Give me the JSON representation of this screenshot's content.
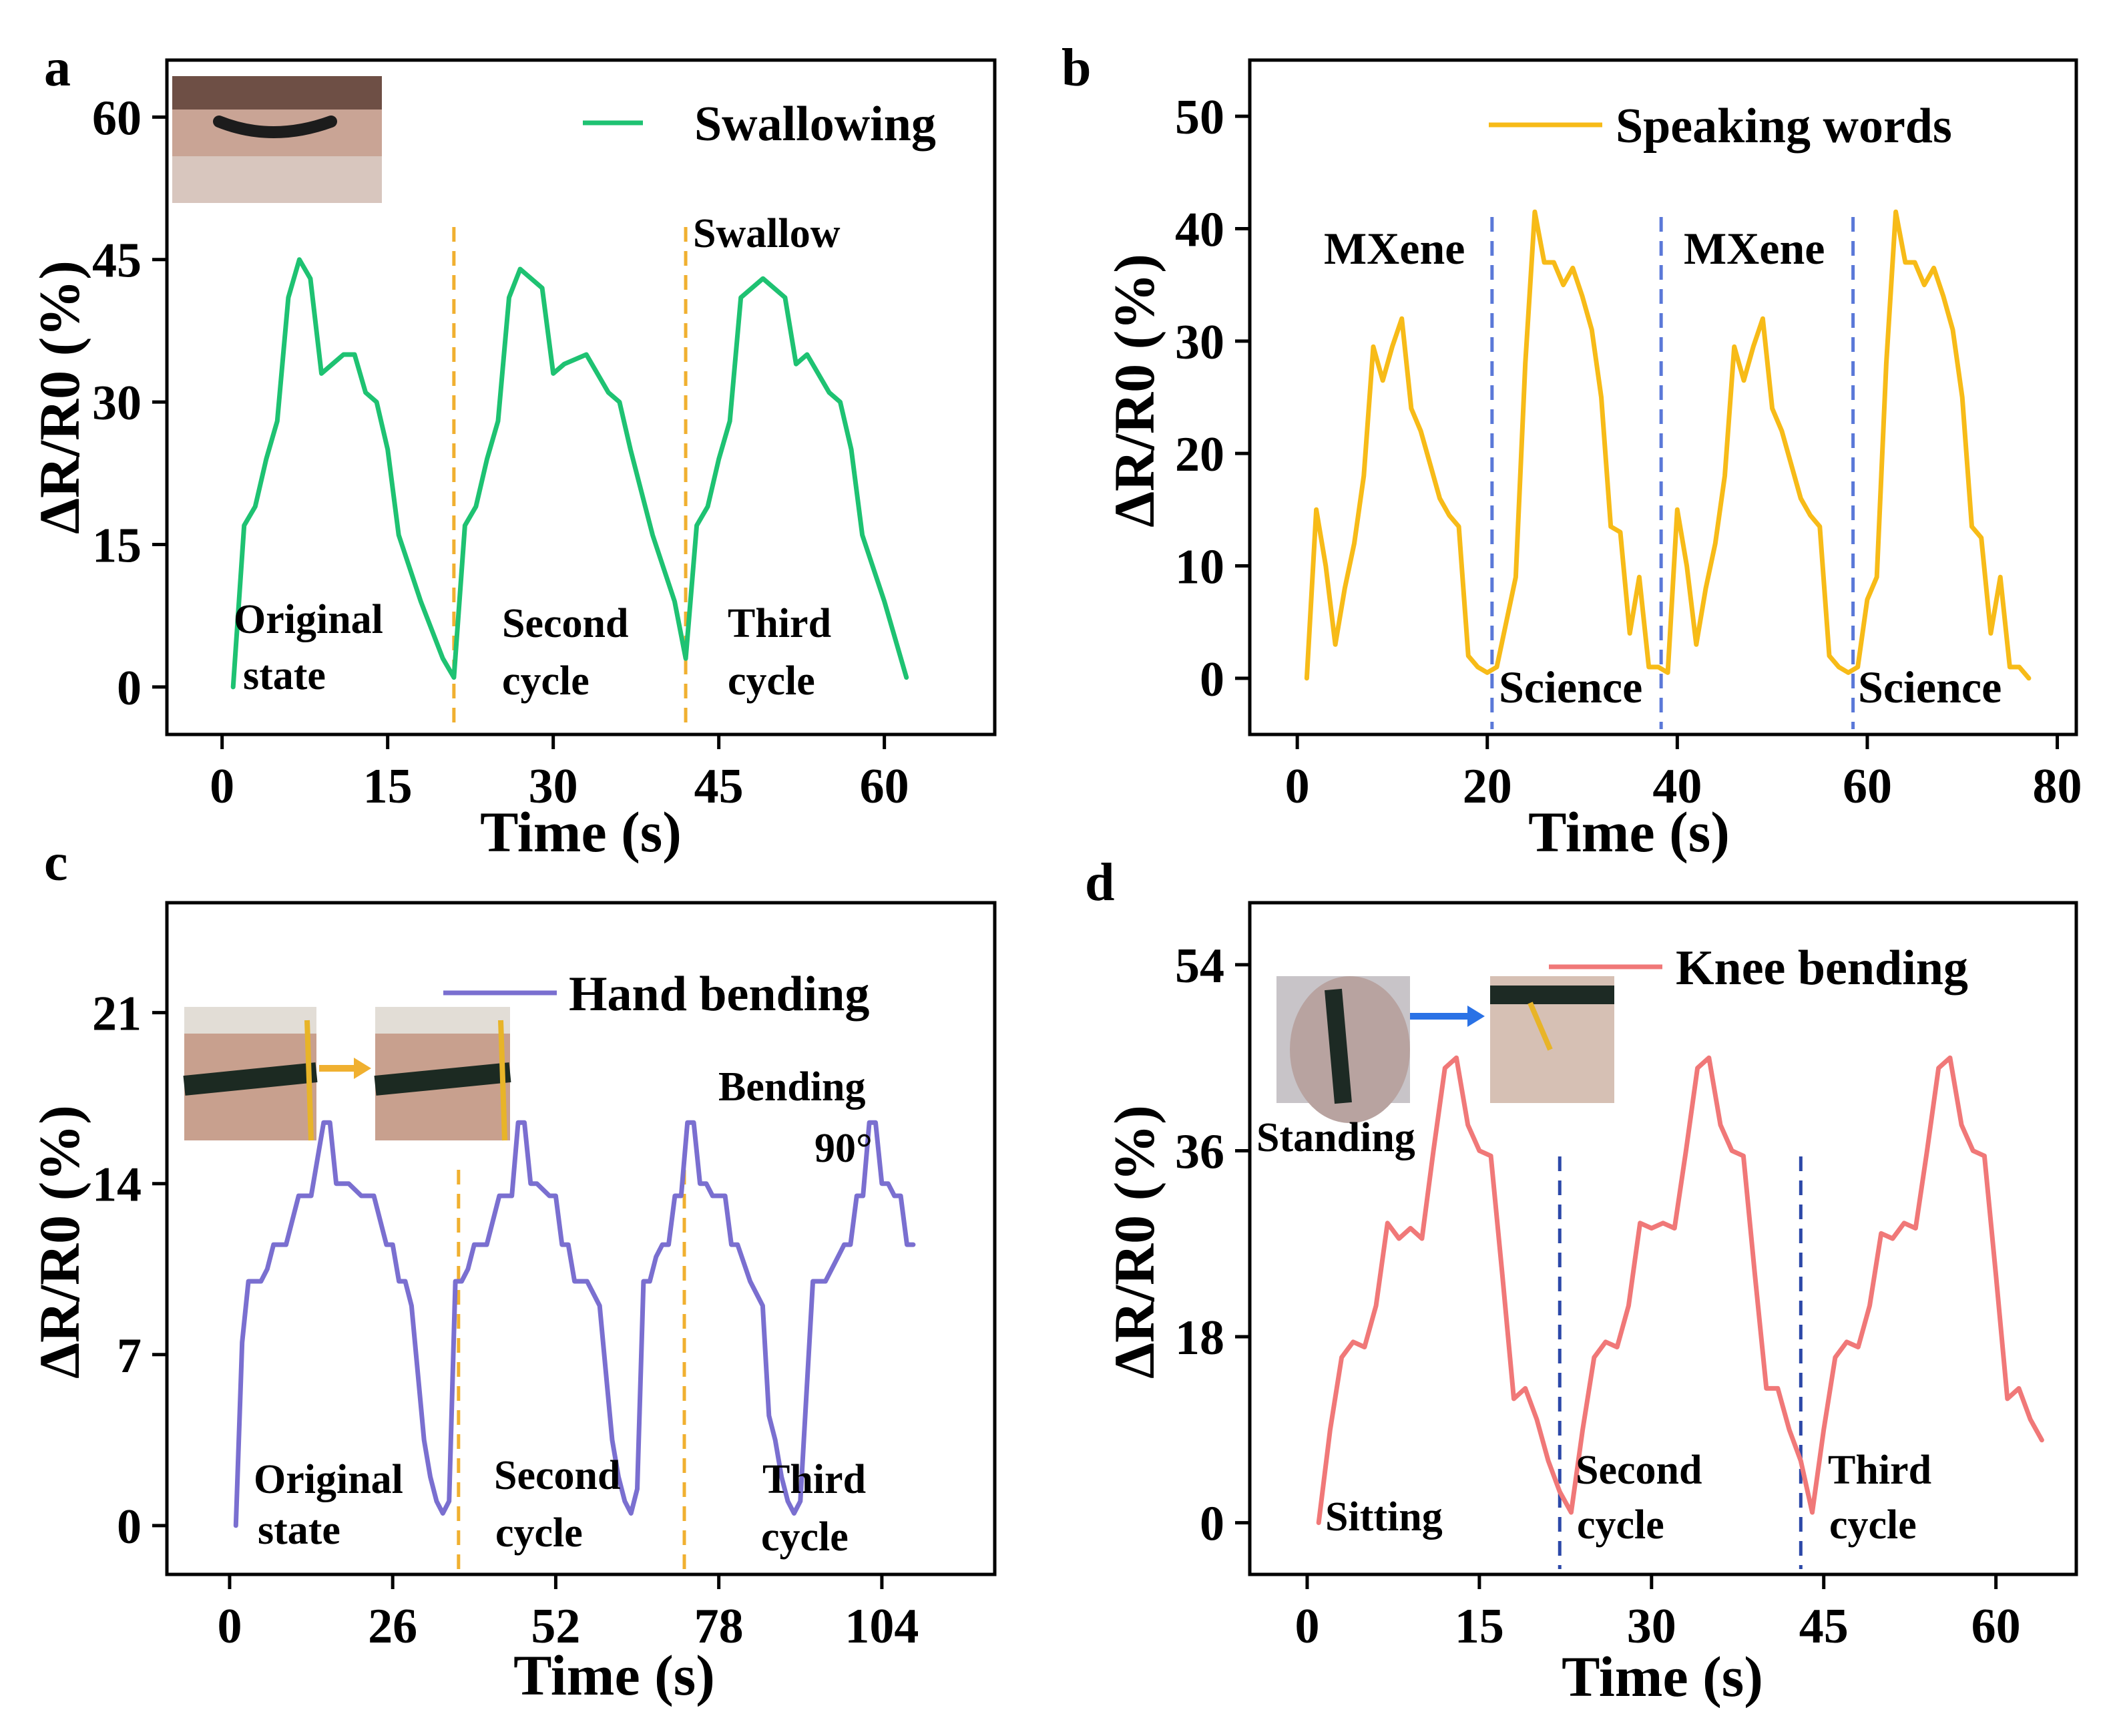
{
  "chart_data": [
    {
      "panel": "a",
      "type": "line",
      "legend": "Swallowing",
      "xlabel": "Time (s)",
      "ylabel": "ΔR/R0 (%)",
      "xlim": [
        -5,
        70
      ],
      "ylim": [
        -5,
        66
      ],
      "xticks": [
        0,
        15,
        30,
        45,
        60
      ],
      "yticks": [
        0,
        15,
        30,
        45,
        60
      ],
      "color": "#1ec272",
      "divider_color": "#f0b030",
      "dividers": [
        21,
        42
      ],
      "x": [
        1,
        2,
        3,
        4,
        5,
        6,
        7,
        8,
        9,
        10,
        11,
        12,
        13,
        14,
        15,
        16,
        18,
        20,
        21,
        22,
        23,
        24,
        25,
        26,
        27,
        29,
        30,
        31,
        33,
        35,
        36,
        37,
        39,
        41,
        42,
        43,
        44,
        45,
        46,
        47,
        49,
        51,
        52,
        53,
        55,
        56,
        57,
        58,
        60,
        62
      ],
      "values": [
        0,
        17,
        19,
        24,
        28,
        41,
        45,
        43,
        33,
        34,
        35,
        35,
        31,
        30,
        25,
        16,
        9,
        3,
        1,
        17,
        19,
        24,
        28,
        41,
        44,
        42,
        33,
        34,
        35,
        31,
        30,
        25,
        16,
        9,
        3,
        17,
        19,
        24,
        28,
        41,
        43,
        41,
        34,
        35,
        31,
        30,
        25,
        16,
        9,
        1
      ],
      "annotations": [
        "Original",
        "state",
        "Second",
        "cycle",
        "Third",
        "cycle",
        "Swallow"
      ]
    },
    {
      "panel": "b",
      "type": "line",
      "legend": "Speaking words",
      "xlabel": "Time (s)",
      "ylabel": "ΔR/R0 (%)",
      "xlim": [
        -5,
        82
      ],
      "ylim": [
        -5,
        55
      ],
      "xticks": [
        0,
        20,
        40,
        60,
        80
      ],
      "yticks": [
        0,
        10,
        20,
        30,
        40,
        50
      ],
      "color": "#f7bb18",
      "divider_color": "#5a78d8",
      "dividers": [
        20.5,
        38.3,
        58.5
      ],
      "x": [
        1,
        2,
        3,
        4,
        5,
        6,
        7,
        8,
        9,
        10,
        11,
        12,
        13,
        14,
        15,
        16,
        17,
        18,
        19,
        20,
        21,
        22,
        23,
        24,
        25,
        26,
        27,
        28,
        29,
        30,
        31,
        32,
        33,
        34,
        35,
        36,
        37,
        38,
        39,
        40,
        41,
        42,
        43,
        44,
        45,
        46,
        47,
        48,
        49,
        50,
        51,
        52,
        53,
        54,
        55,
        56,
        57,
        58,
        59,
        60,
        61,
        62,
        63,
        64,
        65,
        66,
        67,
        68,
        69,
        70,
        71,
        72,
        73,
        74,
        75,
        76,
        77
      ],
      "values": [
        0,
        15,
        10,
        3,
        8,
        12,
        18,
        29.5,
        26.5,
        29.5,
        32,
        24,
        22,
        19,
        16,
        14.5,
        13.5,
        2,
        1,
        0.5,
        1,
        5,
        9,
        28,
        41.5,
        37,
        37,
        35,
        36.5,
        34,
        31,
        25,
        13.5,
        13,
        4,
        9,
        1,
        1,
        0.5,
        15,
        10,
        3,
        8,
        12,
        18,
        29.5,
        26.5,
        29.5,
        32,
        24,
        22,
        19,
        16,
        14.5,
        13.5,
        2,
        1,
        0.5,
        1,
        7,
        9,
        28,
        41.5,
        37,
        37,
        35,
        36.5,
        34,
        31,
        25,
        13.5,
        12.5,
        4,
        9,
        1,
        1,
        0
      ],
      "annotations": [
        "MXene",
        "Science",
        "MXene",
        "Science"
      ]
    },
    {
      "panel": "c",
      "type": "line",
      "legend": "Hand bending",
      "xlabel": "Time (s)",
      "ylabel": "ΔR/R0 (%)",
      "xlim": [
        -10,
        122
      ],
      "ylim": [
        -2,
        25.5
      ],
      "xticks": [
        0,
        26,
        52,
        78,
        104
      ],
      "yticks": [
        0,
        7,
        14,
        21
      ],
      "color": "#7a6fd0",
      "divider_color": "#f0b030",
      "dividers": [
        36.5,
        72.5
      ],
      "x": [
        1,
        2,
        3,
        5,
        6,
        7,
        9,
        11,
        13,
        15,
        16,
        17,
        18,
        19,
        21,
        23,
        25,
        26,
        27,
        28,
        29,
        31,
        32,
        33,
        34,
        35,
        36,
        37,
        38,
        39,
        41,
        43,
        45,
        46,
        47,
        48,
        49,
        51,
        52,
        53,
        54,
        55,
        57,
        59,
        61,
        62,
        63,
        64,
        65,
        66,
        67,
        68,
        69,
        70,
        71,
        72,
        73,
        74,
        75,
        76,
        77,
        79,
        80,
        81,
        83,
        85,
        86,
        87,
        88,
        89,
        90,
        91,
        93,
        95,
        97,
        98,
        99,
        100,
        101,
        102,
        103,
        104,
        105,
        106,
        107,
        108,
        109
      ],
      "values": [
        0,
        7.5,
        10,
        10,
        10.5,
        11.5,
        11.5,
        13.5,
        13.5,
        16.5,
        16.5,
        14,
        14,
        14,
        13.5,
        13.5,
        11.5,
        11.5,
        10,
        10,
        9,
        3.5,
        2,
        1,
        0.5,
        1,
        10,
        10,
        10.5,
        11.5,
        11.5,
        13.5,
        13.5,
        16.5,
        16.5,
        14,
        14,
        13.5,
        13.5,
        11.5,
        11.5,
        10,
        10,
        9,
        3.5,
        2,
        1,
        0.5,
        1.5,
        10,
        10,
        11,
        11.5,
        11.5,
        13.5,
        13.5,
        16.5,
        16.5,
        14,
        14,
        13.5,
        13.5,
        11.5,
        11.5,
        10,
        9,
        4.5,
        3.5,
        2,
        1,
        0.5,
        1,
        10,
        10,
        11,
        11.5,
        11.5,
        13.5,
        13.5,
        16.5,
        16.5,
        14,
        14,
        13.5,
        13.5,
        11.5,
        11.5
      ],
      "annotations": [
        "Original",
        "state",
        "Second",
        "cycle",
        "Third",
        "cycle",
        "Bending",
        "90°"
      ]
    },
    {
      "panel": "d",
      "type": "line",
      "legend": "Knee bending",
      "xlabel": "Time (s)",
      "ylabel": "ΔR/R0 (%)",
      "xlim": [
        -5,
        67
      ],
      "ylim": [
        -5,
        60
      ],
      "xticks": [
        0,
        15,
        30,
        45,
        60
      ],
      "yticks": [
        0,
        18,
        36,
        54
      ],
      "color": "#f07878",
      "divider_color": "#2c48a8",
      "dividers": [
        22,
        43
      ],
      "x": [
        1,
        2,
        3,
        4,
        5,
        6,
        7,
        8,
        9,
        10,
        11,
        12,
        13,
        14,
        15,
        16,
        17,
        18,
        19,
        20,
        21,
        22,
        23,
        24,
        25,
        26,
        27,
        28,
        29,
        30,
        31,
        32,
        33,
        34,
        35,
        36,
        37,
        38,
        39,
        40,
        41,
        42,
        43,
        44,
        45,
        46,
        47,
        48,
        49,
        50,
        51,
        52,
        53,
        54,
        55,
        56,
        57,
        58,
        59,
        60,
        61,
        62,
        63,
        64
      ],
      "values": [
        0,
        9,
        16,
        17.5,
        17,
        21,
        29,
        27.5,
        28.5,
        27.5,
        36,
        44,
        45,
        38.5,
        36,
        35.5,
        24,
        12,
        13,
        10,
        6,
        3,
        1,
        9,
        16,
        17.5,
        17,
        21,
        29,
        28.5,
        29,
        28.5,
        36,
        44,
        45,
        38.5,
        36,
        35.5,
        24,
        13,
        13,
        9,
        6,
        1,
        9,
        16,
        17.5,
        17,
        21,
        28,
        27.5,
        29,
        28.5,
        36,
        44,
        45,
        38.5,
        36,
        35.5,
        24,
        12,
        13,
        10,
        8
      ],
      "annotations": [
        "Sitting",
        "Second",
        "cycle",
        "Third",
        "cycle",
        "Standing"
      ]
    }
  ]
}
